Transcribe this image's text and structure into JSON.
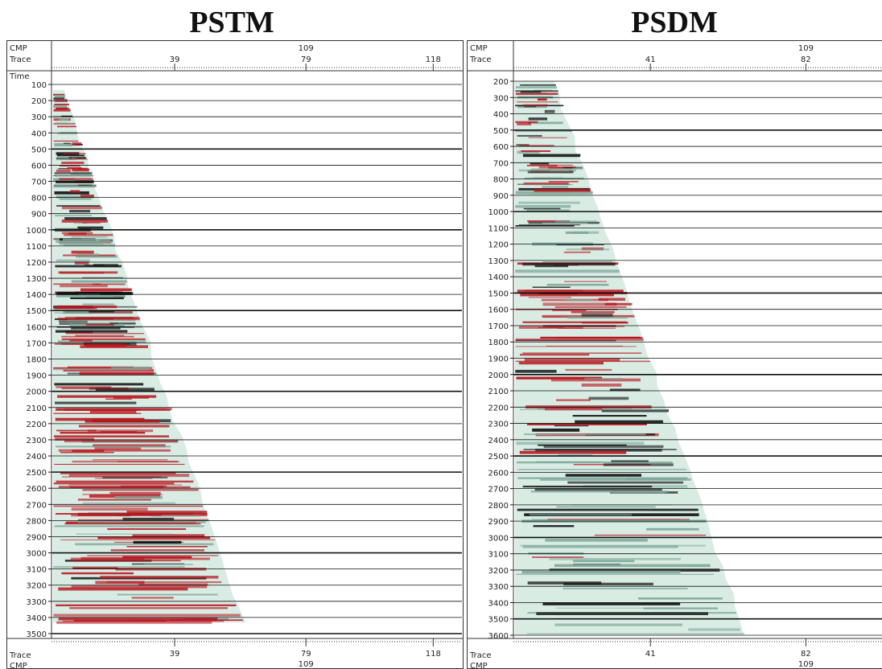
{
  "titles": {
    "left": "PSTM",
    "right": "PSDM"
  },
  "chart_data": [
    {
      "type": "heatmap",
      "name": "PSTM",
      "title": "PSTM",
      "header_labels": {
        "cmp": "CMP",
        "trace": "Trace",
        "time": "Time"
      },
      "top_axis": {
        "cmp_ticks": [
          "109"
        ],
        "trace_ticks": [
          "39",
          "79",
          "118"
        ]
      },
      "bottom_axis": {
        "trace_ticks": [
          "39",
          "79",
          "118"
        ],
        "cmp_ticks": [
          "109"
        ]
      },
      "y_axis": {
        "label": "Time",
        "ticks": [
          100,
          200,
          300,
          400,
          500,
          600,
          700,
          800,
          900,
          1000,
          1100,
          1200,
          1300,
          1400,
          1500,
          1600,
          1700,
          1800,
          1900,
          2000,
          2100,
          2200,
          2300,
          2400,
          2500,
          2600,
          2700,
          2800,
          2900,
          3000,
          3100,
          3200,
          3300,
          3400,
          3500
        ],
        "range": [
          100,
          3500
        ]
      },
      "grid": true,
      "colors": {
        "positive": "#b8141c",
        "negative": "#111111",
        "background": "#d8ece4"
      }
    },
    {
      "type": "heatmap",
      "name": "PSDM",
      "title": "PSDM",
      "header_labels": {
        "cmp": "CMP",
        "trace": "Trace"
      },
      "top_axis": {
        "cmp_ticks": [
          "109"
        ],
        "trace_ticks": [
          "41",
          "82"
        ]
      },
      "bottom_axis": {
        "trace_ticks": [
          "41",
          "82"
        ],
        "cmp_ticks": [
          "109"
        ]
      },
      "y_axis": {
        "ticks": [
          200,
          300,
          400,
          500,
          600,
          700,
          800,
          900,
          1000,
          1100,
          1200,
          1300,
          1400,
          1500,
          1600,
          1700,
          1800,
          1900,
          2000,
          2100,
          2200,
          2300,
          2400,
          2500,
          2600,
          2700,
          2800,
          2900,
          3000,
          3100,
          3200,
          3300,
          3400,
          3500,
          3600
        ],
        "range": [
          200,
          3600
        ]
      },
      "grid": true,
      "colors": {
        "positive": "#b8141c",
        "negative": "#111111",
        "background": "#d8ece4"
      }
    }
  ]
}
